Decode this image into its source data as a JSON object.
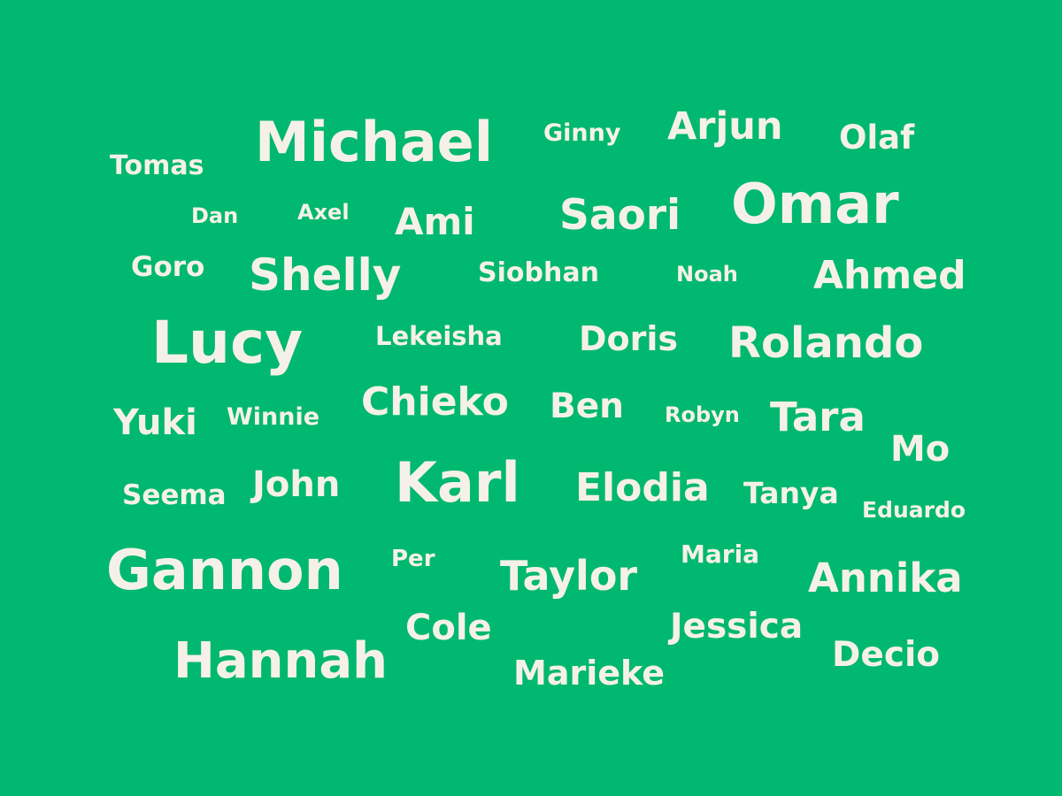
{
  "palette": {
    "background": "#00b86f",
    "text": "#f6f1e8"
  },
  "words": [
    "Michael",
    "Ginny",
    "Arjun",
    "Olaf",
    "Tomas",
    "Dan",
    "Axel",
    "Ami",
    "Saori",
    "Omar",
    "Goro",
    "Shelly",
    "Siobhan",
    "Noah",
    "Ahmed",
    "Lucy",
    "Lekeisha",
    "Doris",
    "Rolando",
    "Yuki",
    "Winnie",
    "Chieko",
    "Ben",
    "Robyn",
    "Tara",
    "Mo",
    "Seema",
    "John",
    "Karl",
    "Elodia",
    "Tanya",
    "Eduardo",
    "Gannon",
    "Per",
    "Taylor",
    "Maria",
    "Annika",
    "Cole",
    "Jessica",
    "Hannah",
    "Marieke",
    "Decio"
  ]
}
